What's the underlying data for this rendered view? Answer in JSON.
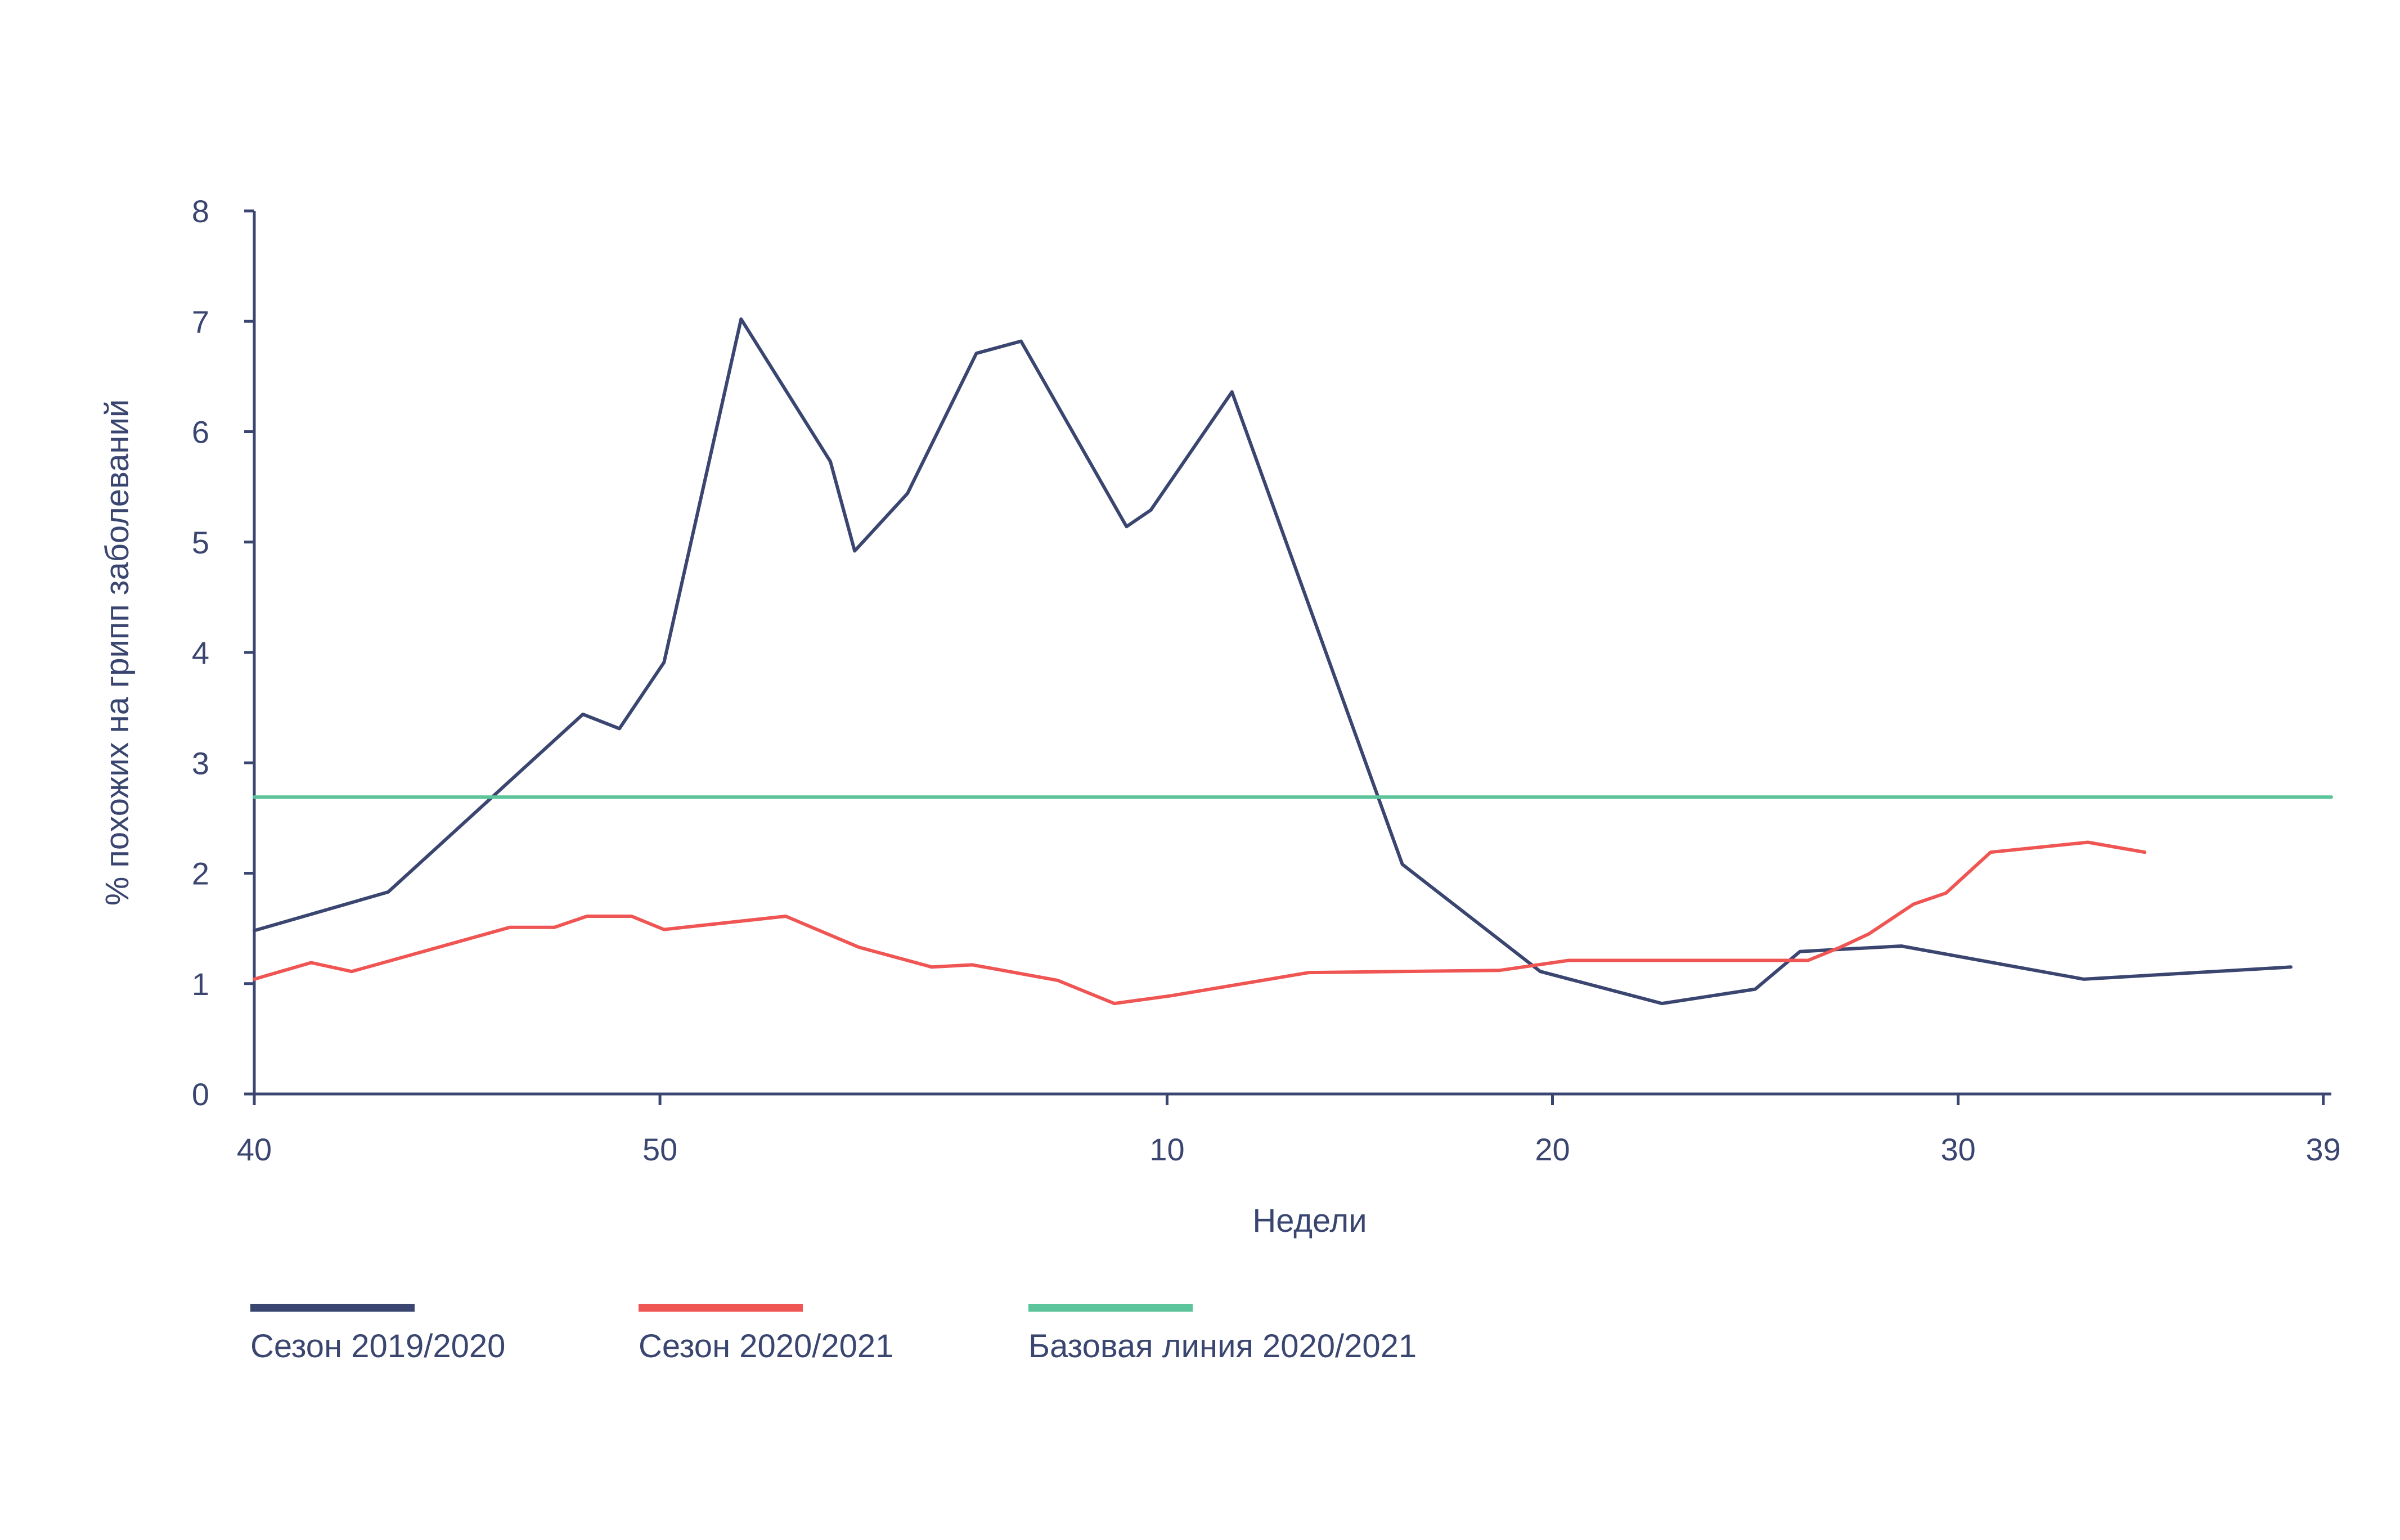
{
  "chart_data": {
    "type": "line",
    "title": "",
    "xlabel": "Недели",
    "ylabel": "% похожих на грипп заболеваний",
    "ylim": [
      0,
      8
    ],
    "yticks": [
      "0",
      "1",
      "2",
      "3",
      "4",
      "5",
      "6",
      "7",
      "8"
    ],
    "xticks": [
      "40",
      "50",
      "10",
      "20",
      "30",
      "39"
    ],
    "xticks_pos": [
      0,
      10,
      22.5,
      32,
      42,
      51
    ],
    "grid": false,
    "legend_position": "bottom",
    "series": [
      {
        "name": "Сезон 2019/2020",
        "color": "#3a4670",
        "x": [
          0,
          3.3,
          8.1,
          9.0,
          10.1,
          12.0,
          14.2,
          14.8,
          16.1,
          17.8,
          18.9,
          21.5,
          22.1,
          24.1,
          28.3,
          31.7,
          34.7,
          37.0,
          38.1,
          40.6,
          45.1,
          50.2
        ],
        "values": [
          1.48,
          1.83,
          3.44,
          3.31,
          3.91,
          7.02,
          5.73,
          4.92,
          5.44,
          6.71,
          6.82,
          5.14,
          5.29,
          6.36,
          2.08,
          1.11,
          0.82,
          0.95,
          1.29,
          1.34,
          1.04,
          1.15
        ]
      },
      {
        "name": "Сезон 2020/2021",
        "color": "#ef5552",
        "x": [
          0,
          1.4,
          2.4,
          6.3,
          7.4,
          8.2,
          9.3,
          10.1,
          13.1,
          14.9,
          16.7,
          17.7,
          19.8,
          21.2,
          22.6,
          26.0,
          30.7,
          32.4,
          37.3,
          38.3,
          39.1,
          39.8,
          40.9,
          41.7,
          42.8,
          45.2,
          46.6
        ],
        "values": [
          1.04,
          1.19,
          1.11,
          1.51,
          1.51,
          1.61,
          1.61,
          1.49,
          1.61,
          1.33,
          1.15,
          1.17,
          1.03,
          0.82,
          0.89,
          1.1,
          1.12,
          1.21,
          1.21,
          1.21,
          1.33,
          1.45,
          1.72,
          1.82,
          2.19,
          2.28,
          2.19
        ]
      },
      {
        "name": "Базовая линия 2020/2021",
        "color": "#5bc49a",
        "x": [
          0,
          51.2
        ],
        "values": [
          2.69,
          2.69
        ]
      }
    ]
  }
}
